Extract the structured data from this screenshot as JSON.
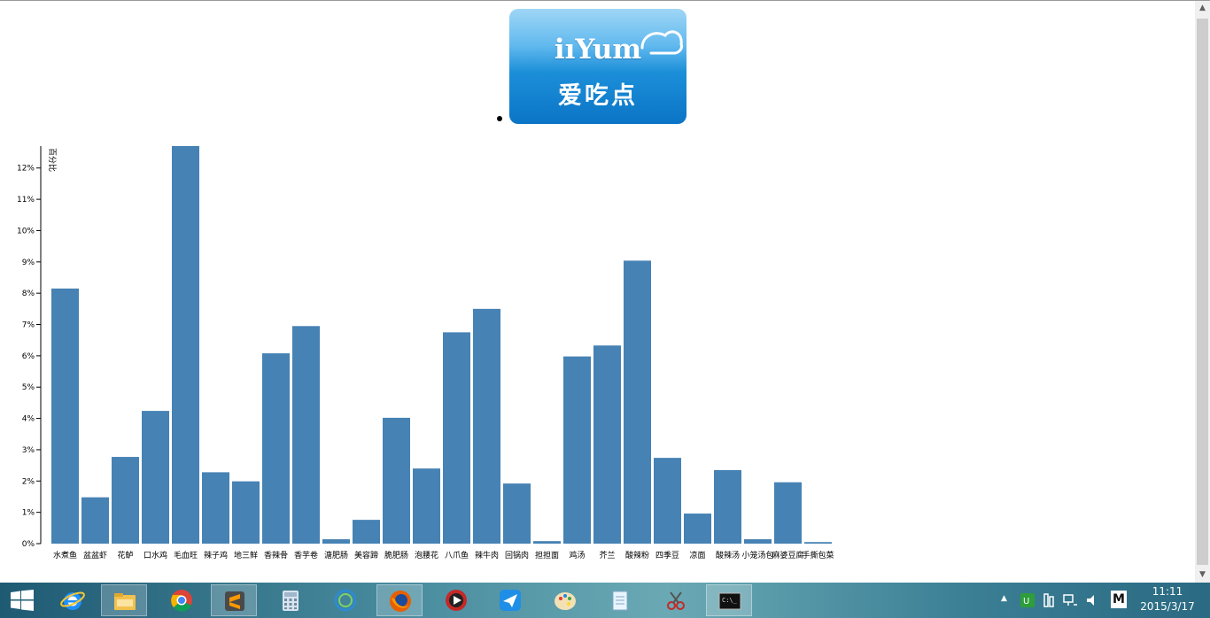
{
  "logo": {
    "brand": "iıYum",
    "cn": "爱吃点"
  },
  "chart_data": {
    "type": "bar",
    "ylabel": "百分比",
    "ylim": [
      0,
      12.7
    ],
    "yticks": [
      "0%",
      "1%",
      "2%",
      "3%",
      "4%",
      "5%",
      "6%",
      "7%",
      "8%",
      "9%",
      "10%",
      "11%",
      "12%"
    ],
    "categories": [
      "水煮鱼",
      "盆盆虾",
      "花鲈",
      "口水鸡",
      "毛血旺",
      "辣子鸡",
      "地三鲜",
      "香辣骨",
      "香芋卷",
      "溏肥肠",
      "美容蹄",
      "脆肥肠",
      "泡腰花",
      "八爪鱼",
      "辣牛肉",
      "回锅肉",
      "担担面",
      "鸡汤",
      "芥兰",
      "酸辣粉",
      "四季豆",
      "凉面",
      "酸辣汤",
      "小笼汤包",
      "麻婆豆腐",
      "手撕包菜"
    ],
    "values": [
      8.15,
      1.48,
      2.77,
      4.24,
      12.7,
      2.28,
      1.99,
      6.08,
      6.95,
      0.14,
      0.76,
      4.02,
      2.4,
      6.75,
      7.5,
      1.92,
      0.08,
      5.98,
      6.33,
      9.04,
      2.74,
      0.96,
      2.35,
      0.14,
      1.96,
      0.05
    ]
  },
  "taskbar": {
    "apps": [
      "windows-start",
      "internet-explorer",
      "file-explorer",
      "chrome",
      "sublime-text",
      "calculator",
      "sync-app",
      "firefox",
      "media-player",
      "paper-plane-app",
      "paint",
      "notepad",
      "scissors-app",
      "command-prompt"
    ],
    "tray_m": "M",
    "time": "11:11",
    "date": "2015/3/17"
  }
}
